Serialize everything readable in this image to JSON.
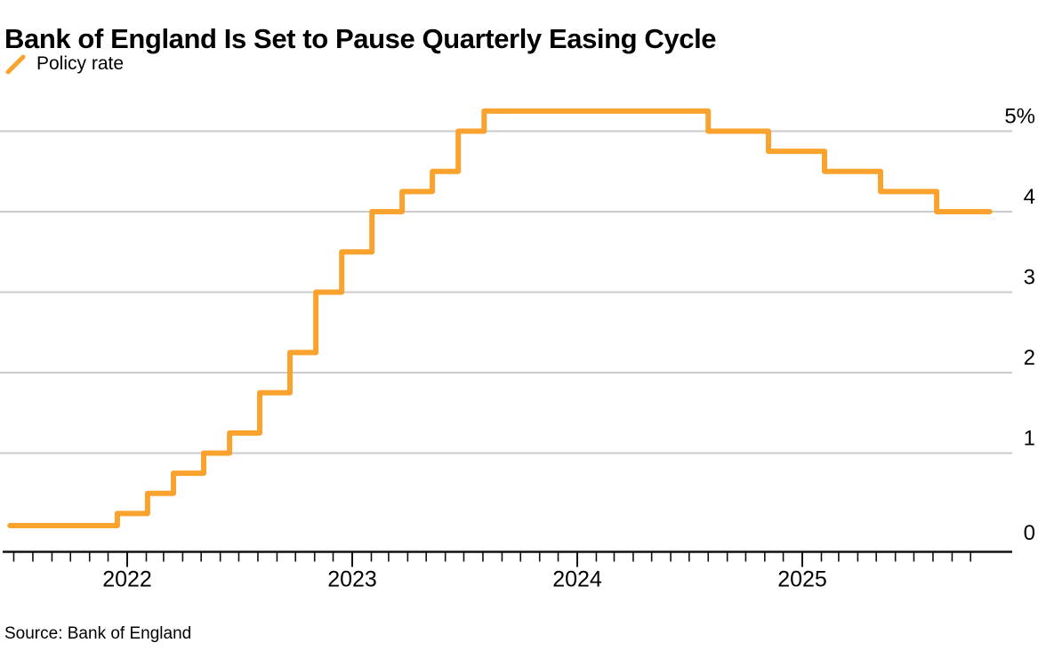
{
  "header": {
    "title": "Bank of England Is Set to Pause Quarterly Easing Cycle"
  },
  "footer": {
    "source_label": "Source: Bank of England"
  },
  "chart_data": {
    "type": "line",
    "step_style": "step-after",
    "title": "Bank of England Is Set to Pause Quarterly Easing Cycle",
    "legend": [
      {
        "label": "Policy rate",
        "color": "#FAA22E"
      }
    ],
    "legend_position": "top-left",
    "grid": "horizontal-only",
    "x_domain": [
      "2021-06-25",
      "2025-11-01"
    ],
    "x_year_ticks": [
      2022,
      2023,
      2024,
      2025
    ],
    "x_minor_ticks": "monthly",
    "ylim": [
      0,
      5.5
    ],
    "ylabel": "",
    "xlabel": "",
    "y_ticks": [
      {
        "value": 0,
        "label": "0"
      },
      {
        "value": 1,
        "label": "1"
      },
      {
        "value": 2,
        "label": "2"
      },
      {
        "value": 3,
        "label": "3"
      },
      {
        "value": 4,
        "label": "4"
      },
      {
        "value": 5,
        "label": "5%"
      }
    ],
    "grid_y_values": [
      1,
      2,
      3,
      4,
      5
    ],
    "series": [
      {
        "name": "Policy rate",
        "unit": "%",
        "color": "#FAA22E",
        "points": [
          [
            "2021-06-25",
            0.1
          ],
          [
            "2021-12-16",
            0.25
          ],
          [
            "2022-02-03",
            0.5
          ],
          [
            "2022-03-17",
            0.75
          ],
          [
            "2022-05-05",
            1.0
          ],
          [
            "2022-06-16",
            1.25
          ],
          [
            "2022-08-04",
            1.75
          ],
          [
            "2022-09-22",
            2.25
          ],
          [
            "2022-11-03",
            3.0
          ],
          [
            "2022-12-15",
            3.5
          ],
          [
            "2023-02-02",
            4.0
          ],
          [
            "2023-03-23",
            4.25
          ],
          [
            "2023-05-11",
            4.5
          ],
          [
            "2023-06-22",
            5.0
          ],
          [
            "2023-08-03",
            5.25
          ],
          [
            "2024-08-01",
            5.0
          ],
          [
            "2024-11-07",
            4.75
          ],
          [
            "2025-02-06",
            4.5
          ],
          [
            "2025-05-08",
            4.25
          ],
          [
            "2025-08-07",
            4.0
          ],
          [
            "2025-11-01",
            4.0
          ]
        ]
      }
    ],
    "source": "Source: Bank of England",
    "colors": {
      "line": "#FAA22E",
      "grid": "#CBCBCB",
      "axis": "#111111",
      "text": "#000000"
    }
  }
}
